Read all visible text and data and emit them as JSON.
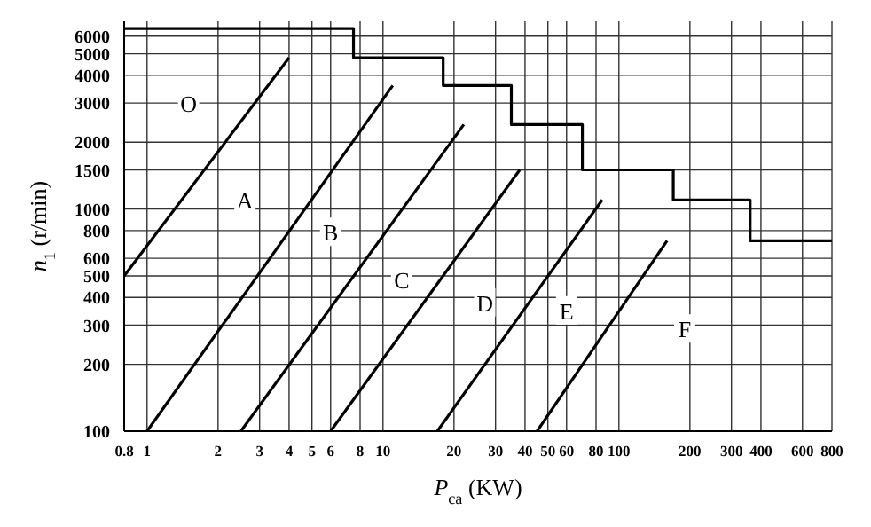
{
  "chart_data": {
    "type": "line",
    "xlabel": "P$_{ca}$ (KW)",
    "ylabel": "n$_{1}$ (r/min)",
    "log": "xy",
    "grid": true,
    "marker": "none",
    "line_style": "solid",
    "xlim": [
      0.8,
      800
    ],
    "ylim": [
      100,
      7000
    ],
    "xticks": [
      0.8,
      1,
      2,
      3,
      4,
      5,
      6,
      8,
      10,
      20,
      30,
      40,
      50,
      60,
      80,
      100,
      200,
      300,
      400,
      600,
      800
    ],
    "yticks": [
      100,
      200,
      300,
      400,
      500,
      600,
      800,
      1000,
      1500,
      2000,
      3000,
      4000,
      5000,
      6000
    ],
    "series": [
      {
        "color": "#000000",
        "x": [
          0.8,
          7.5,
          7.5,
          18,
          18,
          35,
          35,
          70,
          70,
          170,
          170,
          360,
          360,
          800
        ],
        "values": [
          6500,
          6500,
          4800,
          4800,
          3600,
          3600,
          2400,
          2400,
          1500,
          1500,
          1100,
          1100,
          720,
          720
        ]
      },
      {
        "color": "#000000",
        "x": [
          0.8,
          4
        ],
        "values": [
          500,
          4800
        ]
      },
      {
        "color": "#000000",
        "x": [
          1,
          11
        ],
        "values": [
          100,
          3600
        ]
      },
      {
        "color": "#000000",
        "x": [
          2.5,
          22
        ],
        "values": [
          100,
          2400
        ]
      },
      {
        "color": "#000000",
        "x": [
          6,
          38
        ],
        "values": [
          100,
          1500
        ]
      },
      {
        "color": "#000000",
        "x": [
          17,
          85
        ],
        "values": [
          100,
          1100
        ]
      },
      {
        "color": "#000000",
        "x": [
          45,
          160
        ],
        "values": [
          100,
          720
        ]
      }
    ],
    "annotations": [
      "O",
      "A",
      "B",
      "C",
      "D",
      "E",
      "F"
    ]
  }
}
